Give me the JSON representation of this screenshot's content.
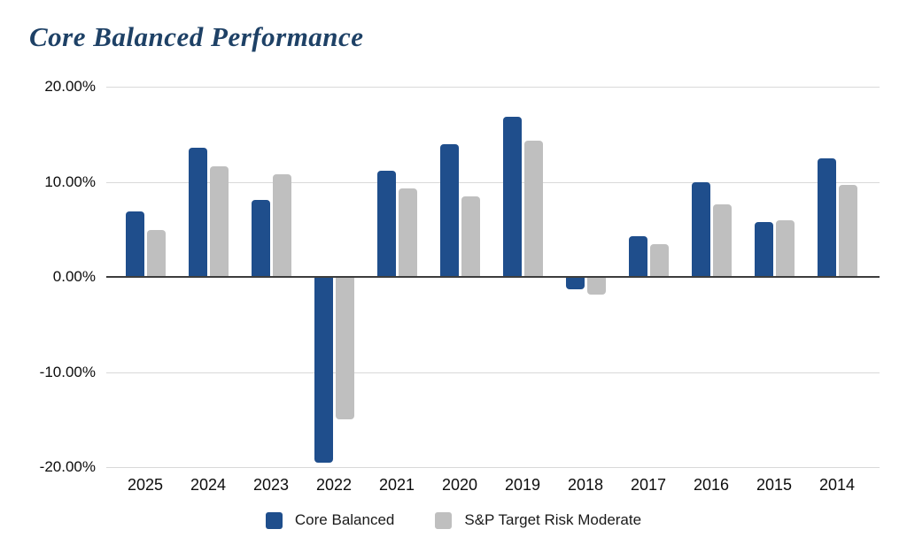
{
  "title": "Core Balanced Performance",
  "colors": {
    "title": "#1E4166",
    "gridline": "#D9D9D9",
    "zero_axis": "#3D3D3D",
    "core_balanced_blue": "#1F4E8C",
    "sp_moderate_gray": "#BFBFBF"
  },
  "chart_data": {
    "type": "bar",
    "title": "Core Balanced Performance",
    "categories": [
      "2025",
      "2024",
      "2023",
      "2022",
      "2021",
      "2020",
      "2019",
      "2018",
      "2017",
      "2016",
      "2015",
      "2014"
    ],
    "series": [
      {
        "name": "Core Balanced",
        "color": "#1F4E8C",
        "values": [
          6.9,
          13.6,
          8.1,
          -19.5,
          11.2,
          14.0,
          16.8,
          -1.3,
          4.3,
          10.0,
          5.8,
          12.5
        ]
      },
      {
        "name": "S&P Target Risk Moderate",
        "color": "#BFBFBF",
        "values": [
          4.9,
          11.6,
          10.8,
          -15.0,
          9.3,
          8.5,
          14.3,
          -1.9,
          3.4,
          7.6,
          6.0,
          9.7
        ]
      }
    ],
    "xlabel": "",
    "ylabel": "",
    "ylim": [
      -20,
      20
    ],
    "yticks": [
      {
        "value": 20,
        "label": "20.00%"
      },
      {
        "value": 10,
        "label": "10.00%"
      },
      {
        "value": 0,
        "label": "0.00%"
      },
      {
        "value": -10,
        "label": "-10.00%"
      },
      {
        "value": -20,
        "label": "-20.00%"
      }
    ],
    "grid": true,
    "legend_position": "bottom"
  }
}
